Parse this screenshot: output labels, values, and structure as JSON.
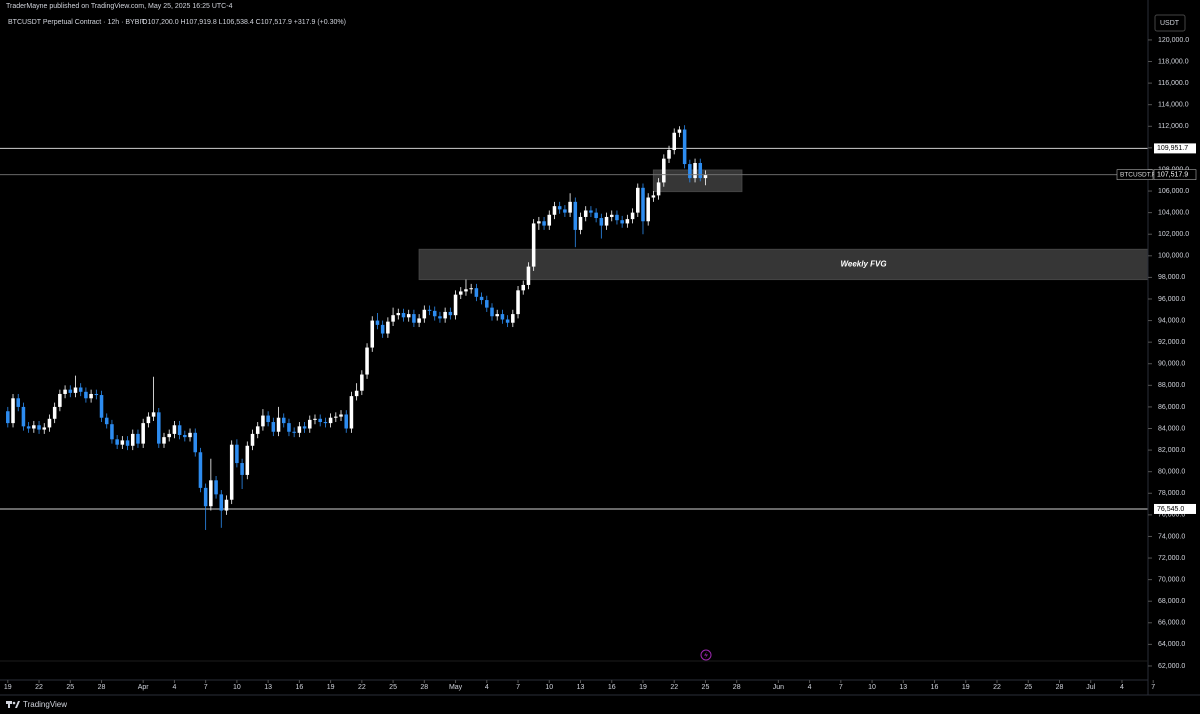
{
  "header": {
    "publisher": "TraderMayne published on TradingView.com, May 25, 2025 16:25 UTC-4",
    "symbol": "BTCUSDT Perpetual Contract · 12h · BYBIT",
    "ohlc": "O107,200.0 H107,919.8 L106,538.4 C107,517.9 +317.9 (+0.30%)",
    "currency": "USDT",
    "brand": "TradingView"
  },
  "chart_data": {
    "type": "candlestick",
    "series": [
      {
        "name": "BTCUSDT.P",
        "up_color": "#ffffff",
        "down_color": "#2d8cf0",
        "open": [
          85600,
          84500,
          86800,
          86000,
          84200,
          84000,
          84300,
          83900,
          84100,
          84900,
          86000,
          87200,
          87600,
          87300,
          87800,
          87400,
          86800,
          87200,
          87100,
          85000,
          84400,
          83000,
          82500,
          82900,
          82400,
          83500,
          82600,
          84500,
          85100,
          85500,
          82600,
          83200,
          83500,
          84300,
          83400,
          83200,
          83600,
          81800,
          78500,
          76800,
          79200,
          77900,
          76400,
          77400,
          82500,
          80800,
          79700,
          82400,
          83500,
          84200,
          85200,
          84600,
          83700,
          85000,
          84500,
          83700,
          83600,
          84200,
          84000,
          84800,
          84900,
          84600,
          84500,
          85000,
          85100,
          85300,
          84000,
          87000,
          87500,
          89000,
          91500,
          94000,
          93600,
          92800,
          93900,
          94500,
          94700,
          94300,
          94600,
          93800,
          94200,
          95000,
          94900,
          94400,
          94200,
          94800,
          94500,
          96400,
          96700,
          96900,
          97000,
          96200,
          95900,
          95200,
          94400,
          94600,
          94100,
          93800,
          94600,
          96800,
          97300,
          99000,
          103000,
          103200,
          102800,
          103800,
          104600,
          104300,
          104000,
          105000,
          102400,
          103600,
          104200,
          104000,
          103500,
          102800,
          103600,
          103800,
          103300,
          103000,
          103400,
          104000,
          106300,
          103200,
          105400,
          105600,
          106800,
          109000,
          109800,
          111400,
          111700,
          108500,
          107200,
          108600,
          107200
        ],
        "high": [
          86000,
          87200,
          87200,
          86400,
          84600,
          84700,
          84700,
          84500,
          85300,
          86400,
          87600,
          88000,
          88000,
          88900,
          88200,
          87800,
          87600,
          87600,
          87500,
          85400,
          84800,
          83400,
          83300,
          83300,
          83900,
          83900,
          84900,
          85500,
          88800,
          85900,
          83600,
          83900,
          84700,
          84700,
          83800,
          84000,
          84000,
          82200,
          78900,
          81200,
          79600,
          78300,
          77800,
          82900,
          83000,
          81200,
          82800,
          83900,
          84600,
          85800,
          85600,
          85000,
          86000,
          85400,
          84900,
          84100,
          84600,
          84600,
          85200,
          85300,
          85300,
          85000,
          85400,
          85500,
          85700,
          85700,
          87400,
          88200,
          89400,
          91900,
          94400,
          94700,
          94000,
          94300,
          95200,
          95100,
          95100,
          95000,
          95000,
          94600,
          95400,
          95400,
          95300,
          94800,
          95200,
          95200,
          96800,
          97100,
          97800,
          97400,
          97400,
          96600,
          96300,
          95600,
          95000,
          95000,
          94500,
          95000,
          97200,
          97700,
          99400,
          103400,
          103600,
          103600,
          104200,
          105000,
          105000,
          104700,
          105800,
          105400,
          104000,
          104600,
          104600,
          104400,
          103900,
          104000,
          104200,
          104200,
          103700,
          103800,
          104400,
          106700,
          106700,
          105800,
          106000,
          107200,
          109400,
          110200,
          111800,
          112000,
          112100,
          108900,
          109000,
          109000,
          107919.8
        ],
        "low": [
          84100,
          84100,
          85600,
          83800,
          83600,
          83600,
          83500,
          83500,
          83700,
          84500,
          85600,
          86800,
          86900,
          86900,
          87000,
          86400,
          86400,
          86700,
          84600,
          84000,
          82600,
          82100,
          82100,
          82000,
          82000,
          82200,
          82200,
          84100,
          84700,
          82200,
          82200,
          82800,
          83100,
          83000,
          82800,
          82800,
          81400,
          78100,
          74600,
          76400,
          77500,
          74800,
          76000,
          77000,
          80400,
          78400,
          79300,
          82000,
          83100,
          83800,
          84200,
          83300,
          83300,
          84100,
          83300,
          83200,
          83200,
          83600,
          83600,
          84400,
          84200,
          84100,
          84100,
          84600,
          84700,
          83600,
          83600,
          86600,
          87100,
          88600,
          91100,
          93200,
          92400,
          92400,
          93500,
          94100,
          93900,
          93900,
          93400,
          93400,
          93800,
          94500,
          94000,
          93800,
          93800,
          94100,
          94100,
          96000,
          96300,
          96500,
          95800,
          95500,
          94800,
          94000,
          94000,
          93700,
          93400,
          93400,
          94200,
          96400,
          96900,
          98600,
          102400,
          102400,
          102400,
          103400,
          103900,
          103600,
          103600,
          100800,
          102000,
          103200,
          103600,
          103100,
          101600,
          102400,
          103200,
          102900,
          102600,
          102600,
          103000,
          103600,
          102000,
          102800,
          105000,
          105200,
          106400,
          108600,
          109400,
          111000,
          108100,
          106800,
          106800,
          106900,
          106538.4
        ],
        "close": [
          84500,
          86800,
          86000,
          84200,
          84000,
          84300,
          83900,
          84100,
          84900,
          86000,
          87200,
          87600,
          87300,
          87800,
          87400,
          86800,
          87200,
          87100,
          85000,
          84400,
          83000,
          82500,
          82900,
          82400,
          83500,
          82600,
          84500,
          85100,
          85500,
          82600,
          83200,
          83500,
          84300,
          83400,
          83200,
          83600,
          81800,
          78500,
          76800,
          79200,
          77900,
          76400,
          77400,
          82500,
          80800,
          79700,
          82400,
          83500,
          84200,
          85200,
          84600,
          83700,
          85000,
          84500,
          83700,
          83600,
          84200,
          84000,
          84800,
          84900,
          84600,
          84500,
          85000,
          85100,
          85300,
          84000,
          87000,
          87500,
          89000,
          91500,
          94000,
          93600,
          92800,
          93900,
          94500,
          94700,
          94300,
          94600,
          93800,
          94200,
          95000,
          94900,
          94400,
          94200,
          94800,
          94500,
          96400,
          96700,
          96900,
          97000,
          96200,
          95900,
          95200,
          94400,
          94600,
          94100,
          93800,
          94600,
          96800,
          97300,
          99000,
          103000,
          103200,
          102800,
          103800,
          104600,
          104300,
          104000,
          105000,
          102400,
          103600,
          104200,
          104000,
          103500,
          102800,
          103600,
          103800,
          103300,
          103000,
          103400,
          104000,
          106300,
          103200,
          105400,
          105600,
          106800,
          109000,
          109800,
          111400,
          111700,
          108500,
          107200,
          108600,
          107200,
          107517.9
        ],
        "last_label": "107,517.9"
      }
    ],
    "xlim": [
      -1.5,
      219
    ],
    "xticks": [
      {
        "value": 0,
        "label": "19"
      },
      {
        "value": 6,
        "label": "22"
      },
      {
        "value": 12,
        "label": "25"
      },
      {
        "value": 18,
        "label": "28"
      },
      {
        "value": 26,
        "label": "Apr"
      },
      {
        "value": 32,
        "label": "4"
      },
      {
        "value": 38,
        "label": "7"
      },
      {
        "value": 44,
        "label": "10"
      },
      {
        "value": 50,
        "label": "13"
      },
      {
        "value": 56,
        "label": "16"
      },
      {
        "value": 62,
        "label": "19"
      },
      {
        "value": 68,
        "label": "22"
      },
      {
        "value": 74,
        "label": "25"
      },
      {
        "value": 80,
        "label": "28"
      },
      {
        "value": 86,
        "label": "May"
      },
      {
        "value": 92,
        "label": "4"
      },
      {
        "value": 98,
        "label": "7"
      },
      {
        "value": 104,
        "label": "10"
      },
      {
        "value": 110,
        "label": "13"
      },
      {
        "value": 116,
        "label": "16"
      },
      {
        "value": 122,
        "label": "19"
      },
      {
        "value": 128,
        "label": "22"
      },
      {
        "value": 134,
        "label": "25"
      },
      {
        "value": 140,
        "label": "28"
      },
      {
        "value": 148,
        "label": "Jun"
      },
      {
        "value": 154,
        "label": "4"
      },
      {
        "value": 160,
        "label": "7"
      },
      {
        "value": 166,
        "label": "10"
      },
      {
        "value": 172,
        "label": "13"
      },
      {
        "value": 178,
        "label": "16"
      },
      {
        "value": 184,
        "label": "19"
      },
      {
        "value": 190,
        "label": "22"
      },
      {
        "value": 196,
        "label": "25"
      },
      {
        "value": 202,
        "label": "28"
      },
      {
        "value": 208,
        "label": "Jul"
      },
      {
        "value": 214,
        "label": "4"
      },
      {
        "value": 220,
        "label": "7"
      }
    ],
    "ylim": [
      60700,
      123700
    ],
    "yticks": [
      {
        "value": 120000,
        "label": "120,000.0"
      },
      {
        "value": 118000,
        "label": "118,000.0"
      },
      {
        "value": 116000,
        "label": "116,000.0"
      },
      {
        "value": 114000,
        "label": "114,000.0"
      },
      {
        "value": 112000,
        "label": "112,000.0"
      },
      {
        "value": 110000,
        "label": "110,000.0"
      },
      {
        "value": 108000,
        "label": "108,000.0"
      },
      {
        "value": 106000,
        "label": "106,000.0"
      },
      {
        "value": 104000,
        "label": "104,000.0"
      },
      {
        "value": 102000,
        "label": "102,000.0"
      },
      {
        "value": 100000,
        "label": "100,000.0"
      },
      {
        "value": 98000,
        "label": "98,000.0"
      },
      {
        "value": 96000,
        "label": "96,000.0"
      },
      {
        "value": 94000,
        "label": "94,000.0"
      },
      {
        "value": 92000,
        "label": "92,000.0"
      },
      {
        "value": 90000,
        "label": "90,000.0"
      },
      {
        "value": 88000,
        "label": "88,000.0"
      },
      {
        "value": 86000,
        "label": "86,000.0"
      },
      {
        "value": 84000,
        "label": "84,000.0"
      },
      {
        "value": 82000,
        "label": "82,000.0"
      },
      {
        "value": 80000,
        "label": "80,000.0"
      },
      {
        "value": 78000,
        "label": "78,000.0"
      },
      {
        "value": 76000,
        "label": "76,000.0"
      },
      {
        "value": 74000,
        "label": "74,000.0"
      },
      {
        "value": 72000,
        "label": "72,000.0"
      },
      {
        "value": 70000,
        "label": "70,000.0"
      },
      {
        "value": 68000,
        "label": "68,000.0"
      },
      {
        "value": 66000,
        "label": "66,000.0"
      },
      {
        "value": 64000,
        "label": "64,000.0"
      },
      {
        "value": 62000,
        "label": "62,000.0"
      }
    ],
    "levels": [
      {
        "value": 109951.7,
        "label": "109,951.7"
      },
      {
        "value": 76545,
        "label": "76,545.0"
      }
    ],
    "zones": [
      {
        "x0": 124,
        "x1": 141,
        "top": 107950,
        "bottom": 105950
      },
      {
        "label": "Weekly FVG",
        "x0": 79,
        "x1": 219,
        "top": 100600,
        "bottom": 97800
      }
    ]
  }
}
